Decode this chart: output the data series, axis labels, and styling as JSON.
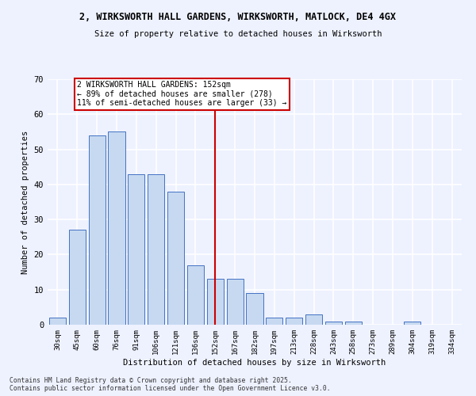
{
  "title_line1": "2, WIRKSWORTH HALL GARDENS, WIRKSWORTH, MATLOCK, DE4 4GX",
  "title_line2": "Size of property relative to detached houses in Wirksworth",
  "xlabel": "Distribution of detached houses by size in Wirksworth",
  "ylabel": "Number of detached properties",
  "categories": [
    "30sqm",
    "45sqm",
    "60sqm",
    "76sqm",
    "91sqm",
    "106sqm",
    "121sqm",
    "136sqm",
    "152sqm",
    "167sqm",
    "182sqm",
    "197sqm",
    "213sqm",
    "228sqm",
    "243sqm",
    "258sqm",
    "273sqm",
    "289sqm",
    "304sqm",
    "319sqm",
    "334sqm"
  ],
  "values": [
    2,
    27,
    54,
    55,
    43,
    43,
    38,
    17,
    13,
    13,
    9,
    2,
    2,
    3,
    1,
    1,
    0,
    0,
    1,
    0,
    0
  ],
  "bar_color": "#c6d9f0",
  "bar_edge_color": "#4472c4",
  "marker_index": 8,
  "marker_label": "2 WIRKSWORTH HALL GARDENS: 152sqm\n← 89% of detached houses are smaller (278)\n11% of semi-detached houses are larger (33) →",
  "marker_color": "#cc0000",
  "ylim": [
    0,
    70
  ],
  "yticks": [
    0,
    10,
    20,
    30,
    40,
    50,
    60,
    70
  ],
  "background_color": "#eef2ff",
  "grid_color": "#ffffff",
  "footnote1": "Contains HM Land Registry data © Crown copyright and database right 2025.",
  "footnote2": "Contains public sector information licensed under the Open Government Licence v3.0."
}
